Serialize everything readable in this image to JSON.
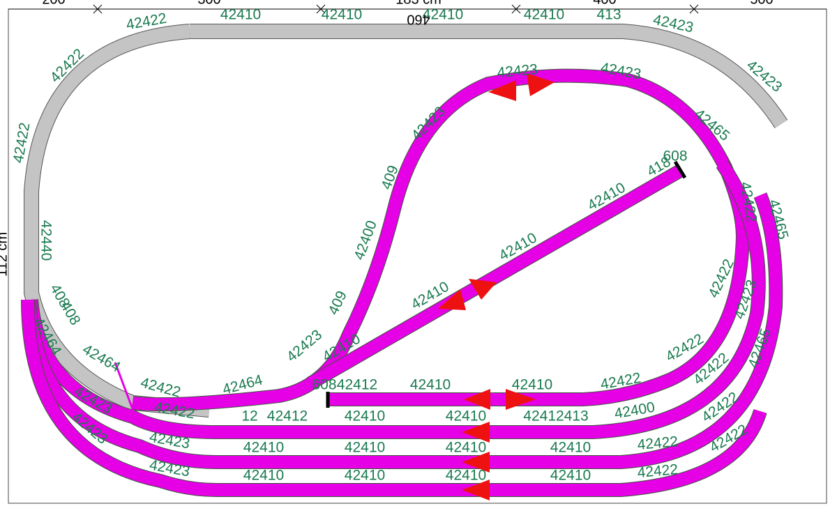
{
  "ruler": {
    "marks": [
      "200",
      "300",
      "183 cm",
      "400",
      "500"
    ],
    "mirrored": "460",
    "side": "112 cm"
  },
  "track_labels": [
    "42422",
    "42410",
    "42410",
    "42410",
    "42410",
    "413",
    "42423",
    "42423",
    "42422",
    "42422",
    "42440",
    "408",
    "408",
    "42464",
    "42422",
    "42422",
    "42423",
    "42423",
    "42423",
    "409",
    "42400",
    "409",
    "42423",
    "42464",
    "42465",
    "42422",
    "42465",
    "42422",
    "42423",
    "42465",
    "418",
    "608",
    "42410",
    "42410",
    "42410",
    "42410",
    "608",
    "42412",
    "42410",
    "42410",
    "42422",
    "42422",
    "12",
    "42412",
    "42410",
    "42410",
    "42412413",
    "42400",
    "42422",
    "42423",
    "42423",
    "42410",
    "42410",
    "42410",
    "42410",
    "42422",
    "42422",
    "42423",
    "42423",
    "42410",
    "42410",
    "42410",
    "42410",
    "42422",
    "42422",
    "42464"
  ]
}
